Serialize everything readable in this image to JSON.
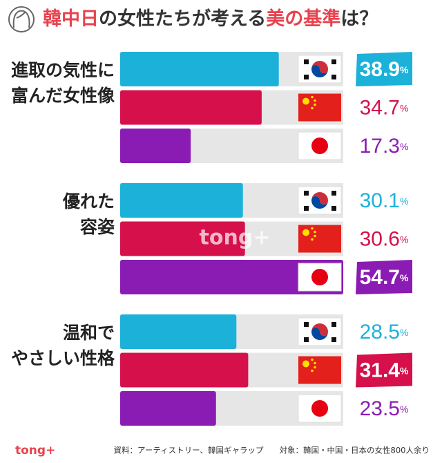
{
  "chart_data": {
    "type": "bar",
    "orientation": "horizontal",
    "title": [
      "韓中日",
      "の女性たちが考える",
      "美の基準",
      "は？"
    ],
    "categories": [
      [
        "進取の気性に",
        "富んだ女性像"
      ],
      [
        "優れた",
        "容姿"
      ],
      [
        "温和で",
        "やさしい性格"
      ]
    ],
    "series": [
      {
        "color": "#1cb1d9",
        "values": [
          38.9,
          30.1,
          28.5
        ],
        "value_labels": [
          "38.9%",
          "30.1%",
          "28.5%"
        ]
      },
      {
        "color": "#d5104b",
        "values": [
          34.7,
          30.6,
          31.4
        ],
        "value_labels": [
          "34.7%",
          "30.6%",
          "31.4%"
        ]
      },
      {
        "color": "#8a1cb3",
        "values": [
          17.3,
          54.7,
          23.5
        ],
        "value_labels": [
          "17.3%",
          "54.7%",
          "23.5%"
        ]
      }
    ],
    "watermark": "tong+",
    "logo": "tong+",
    "source": "資料：アーティストリー、韓国ギャラップ　　対象：韓国・中国・日本の女性800人余り"
  }
}
